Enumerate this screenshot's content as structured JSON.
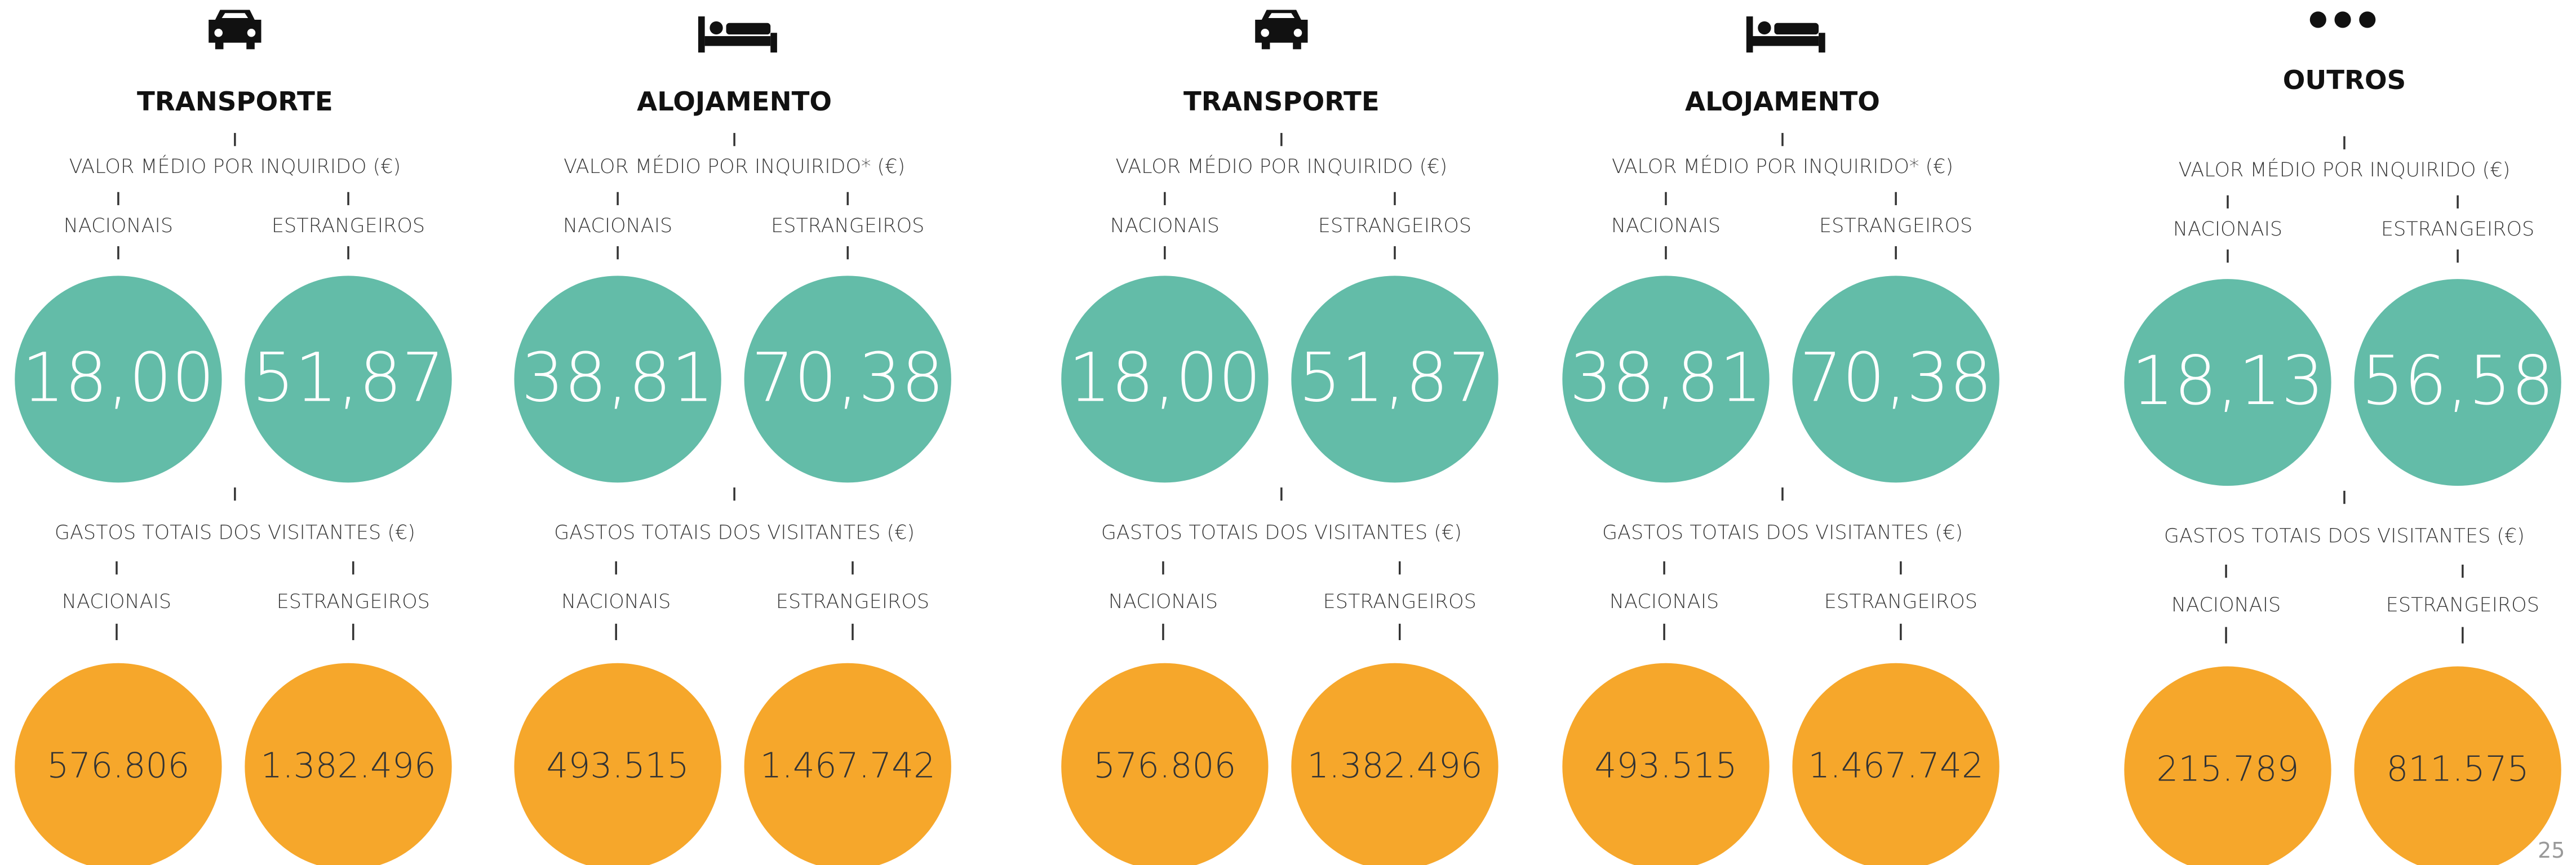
{
  "panels": [
    {
      "title": "TRANSPORTE",
      "avg_label": "VALOR MÉDIO POR INQUIRIDO (€)",
      "avg_groups": [
        "NACIONAIS",
        "ESTRANGEIROS"
      ],
      "avg_values": [
        "18,00",
        "51,87"
      ],
      "total_label": "GASTOS TOTAIS DOS VISITANTES (€)",
      "total_groups": [
        "NACIONAIS",
        "ESTRANGEIROS"
      ],
      "total_values": [
        "576.806",
        "1.382.496"
      ]
    },
    {
      "title": "ALOJAMENTO",
      "avg_label": "VALOR MÉDIO POR INQUIRIDO* (€)",
      "avg_groups": [
        "NACIONAIS",
        "ESTRANGEIROS"
      ],
      "avg_values": [
        "38,81",
        "70,38"
      ],
      "total_label": "GASTOS TOTAIS DOS VISITANTES (€)",
      "total_groups": [
        "NACIONAIS",
        "ESTRANGEIROS"
      ],
      "total_values": [
        "493.515",
        "1.467.742"
      ]
    },
    {
      "title": "TRANSPORTE",
      "avg_label": "VALOR MÉDIO POR INQUIRIDO (€)",
      "avg_groups": [
        "NACIONAIS",
        "ESTRANGEIROS"
      ],
      "avg_values": [
        "18,00",
        "51,87"
      ],
      "total_label": "GASTOS TOTAIS DOS VISITANTES (€)",
      "total_groups": [
        "NACIONAIS",
        "ESTRANGEIROS"
      ],
      "total_values": [
        "576.806",
        "1.382.496"
      ]
    },
    {
      "title": "ALOJAMENTO",
      "avg_label": "VALOR MÉDIO POR INQUIRIDO* (€)",
      "avg_groups": [
        "NACIONAIS",
        "ESTRANGEIROS"
      ],
      "avg_values": [
        "38,81",
        "70,38"
      ],
      "total_label": "GASTOS TOTAIS DOS VISITANTES (€)",
      "total_groups": [
        "NACIONAIS",
        "ESTRANGEIROS"
      ],
      "total_values": [
        "493.515",
        "1.467.742"
      ]
    },
    {
      "title": "OUTROS",
      "avg_label": "VALOR MÉDIO POR INQUIRIDO (€)",
      "avg_groups": [
        "NACIONAIS",
        "ESTRANGEIROS"
      ],
      "avg_values": [
        "18,13",
        "56,58"
      ],
      "total_label": "GASTOS TOTAIS DOS VISITANTES (€)",
      "total_groups": [
        "NACIONAIS",
        "ESTRANGEIROS"
      ],
      "total_values": [
        "215.789",
        "811.575"
      ]
    }
  ],
  "page_number": "25"
}
